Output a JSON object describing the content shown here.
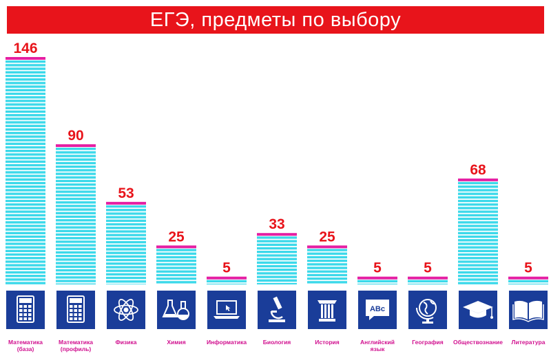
{
  "chart_data": {
    "type": "bar",
    "title": "ЕГЭ, предметы по выбору",
    "categories": [
      "Математика (база)",
      "Математика (профиль)",
      "Физика",
      "Химия",
      "Информатика",
      "Биология",
      "История",
      "Английский язык",
      "География",
      "Обществознание",
      "Литература"
    ],
    "category_lines": [
      [
        "Математика",
        "(база)"
      ],
      [
        "Математика",
        "(профиль)"
      ],
      [
        "Физика"
      ],
      [
        "Химия"
      ],
      [
        "Информатика"
      ],
      [
        "Биология"
      ],
      [
        "История"
      ],
      [
        "Английский",
        "язык"
      ],
      [
        "География"
      ],
      [
        "Обществознание"
      ],
      [
        "Литература"
      ]
    ],
    "values": [
      146,
      90,
      53,
      25,
      5,
      33,
      25,
      5,
      5,
      68,
      5
    ],
    "value_labels": [
      "146",
      "90",
      "53",
      "25",
      "5",
      "33",
      "25",
      "5",
      "5",
      "68",
      "5"
    ],
    "icons": [
      "calculator-icon",
      "calculator-icon",
      "atom-icon",
      "flask-icon",
      "laptop-icon",
      "microscope-icon",
      "column-icon",
      "abc-speech-icon",
      "globe-icon",
      "graduation-cap-icon",
      "open-book-icon"
    ],
    "ylim": [
      0,
      146
    ],
    "grid": false,
    "legend": "none",
    "colors": {
      "bar": "#3cd9ea",
      "bar_top": "#e51fa3",
      "value_text": "#e8141b",
      "category_text": "#d1108f",
      "icon_bg": "#1a3d99",
      "title_bg": "#e8141b",
      "title_text": "#ffffff"
    }
  }
}
